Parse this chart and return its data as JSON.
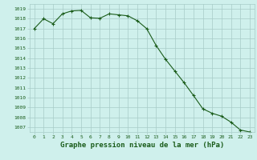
{
  "x": [
    0,
    1,
    2,
    3,
    4,
    5,
    6,
    7,
    8,
    9,
    10,
    11,
    12,
    13,
    14,
    15,
    16,
    17,
    18,
    19,
    20,
    21,
    22,
    23
  ],
  "y": [
    1017.0,
    1018.0,
    1017.5,
    1018.5,
    1018.8,
    1018.85,
    1018.1,
    1018.05,
    1018.5,
    1018.4,
    1018.3,
    1017.8,
    1017.0,
    1015.3,
    1013.9,
    1012.7,
    1011.5,
    1010.2,
    1008.85,
    1008.4,
    1008.1,
    1007.5,
    1006.7,
    1006.5
  ],
  "line_color": "#1a5c1a",
  "marker": "+",
  "marker_size": 3,
  "marker_lw": 0.8,
  "line_width": 0.8,
  "bg_color": "#cff0ec",
  "grid_color": "#a8ccc8",
  "yticks": [
    1007,
    1008,
    1009,
    1010,
    1011,
    1012,
    1013,
    1014,
    1015,
    1016,
    1017,
    1018,
    1019
  ],
  "xlabel": "Graphe pression niveau de la mer (hPa)",
  "xlabel_fontsize": 6.5,
  "tick_fontsize": 4.5,
  "xlim": [
    -0.5,
    23.5
  ],
  "ylim": [
    1006.5,
    1019.5
  ],
  "tick_color": "#1a5c1a",
  "xlabel_color": "#1a5c1a"
}
